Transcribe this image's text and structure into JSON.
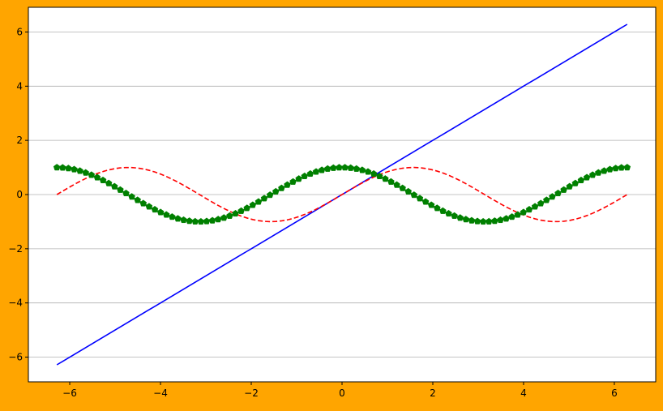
{
  "page": {
    "background": "#FFA500",
    "plot_background": "#FFFFFF"
  },
  "chart_data": {
    "type": "line",
    "title": "",
    "xlabel": "",
    "ylabel": "",
    "xlim": [
      -6.911503837897545,
      6.911503837897545
    ],
    "ylim": [
      -6.911503837897545,
      6.911503837897545
    ],
    "x_ticks": [
      -6,
      -4,
      -2,
      0,
      2,
      4,
      6
    ],
    "y_ticks": [
      -6,
      -4,
      -2,
      0,
      2,
      4,
      6
    ],
    "x_tick_labels": [
      "−6",
      "−4",
      "−2",
      "0",
      "2",
      "4",
      "6"
    ],
    "y_tick_labels": [
      "−6",
      "−4",
      "−2",
      "0",
      "2",
      "4",
      "6"
    ],
    "grid": {
      "axis": "y",
      "color": "#B0B0B0"
    },
    "legend": "none",
    "x_range": [
      -6.283185307179586,
      6.283185307179586
    ],
    "samples": 100,
    "series": [
      {
        "function": "x",
        "formula": "y = x",
        "color": "#0000FF",
        "linestyle": "solid",
        "marker": "none"
      },
      {
        "function": "sin",
        "formula": "y = sin(x)",
        "color": "#FF0000",
        "linestyle": "dashed",
        "marker": "none"
      },
      {
        "function": "cos",
        "formula": "y = cos(x)",
        "color": "#008000",
        "linestyle": "solid",
        "marker": "pentagon"
      }
    ]
  }
}
